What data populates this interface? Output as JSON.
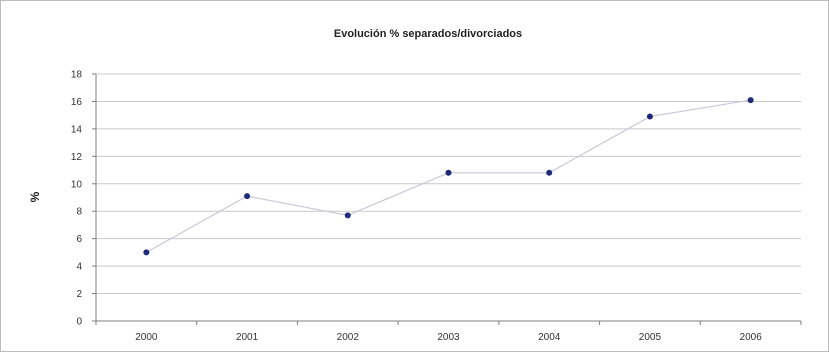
{
  "chart_data": {
    "type": "line",
    "title": "Evolución % separados/divorciados",
    "xlabel": "",
    "ylabel": "%",
    "categories": [
      "2000",
      "2001",
      "2002",
      "2003",
      "2004",
      "2005",
      "2006"
    ],
    "series": [
      {
        "values": [
          5.0,
          9.1,
          7.7,
          10.8,
          10.8,
          14.9,
          16.1
        ]
      }
    ],
    "ylim": [
      0,
      18
    ],
    "yticks": [
      0,
      2,
      4,
      6,
      8,
      10,
      12,
      14,
      16,
      18
    ],
    "grid": true,
    "legend": "none",
    "colors": {
      "marker": "#1f2a7a",
      "line": "#c8c8d8",
      "grid": "#c9c9c9",
      "axis": "#7f7f7f"
    }
  }
}
